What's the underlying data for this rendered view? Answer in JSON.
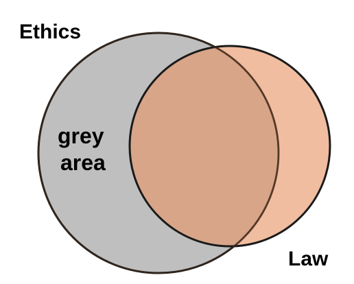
{
  "diagram": {
    "sets": [
      {
        "name": "ethics",
        "label": "Ethics",
        "fill_color": "#bfbfbf",
        "stroke_color": "#1a1a1a"
      },
      {
        "name": "law",
        "label": "Law",
        "fill_color": "#e8a27a",
        "stroke_color": "#1a1a1a"
      }
    ],
    "region_annotation": {
      "line1": "grey",
      "line2": "area"
    }
  }
}
